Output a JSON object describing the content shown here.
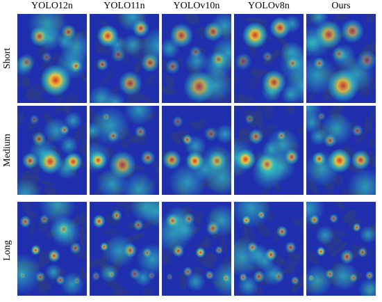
{
  "columns": [
    "YOLO12n",
    "YOLO11n",
    "YOLOv10n",
    "YOLOv8n",
    "Ours"
  ],
  "rows": [
    "Short",
    "Medium",
    "Long"
  ],
  "colormap": {
    "background": "#1f2fae",
    "foliage": "#2b3a8a",
    "cool": "#33c6c0",
    "warm": "#f2d43a",
    "hot": "#e8321c"
  },
  "image_content": "Grad-CAM heatmaps over foliage with fruit clusters for each detector at short, medium and long distance"
}
